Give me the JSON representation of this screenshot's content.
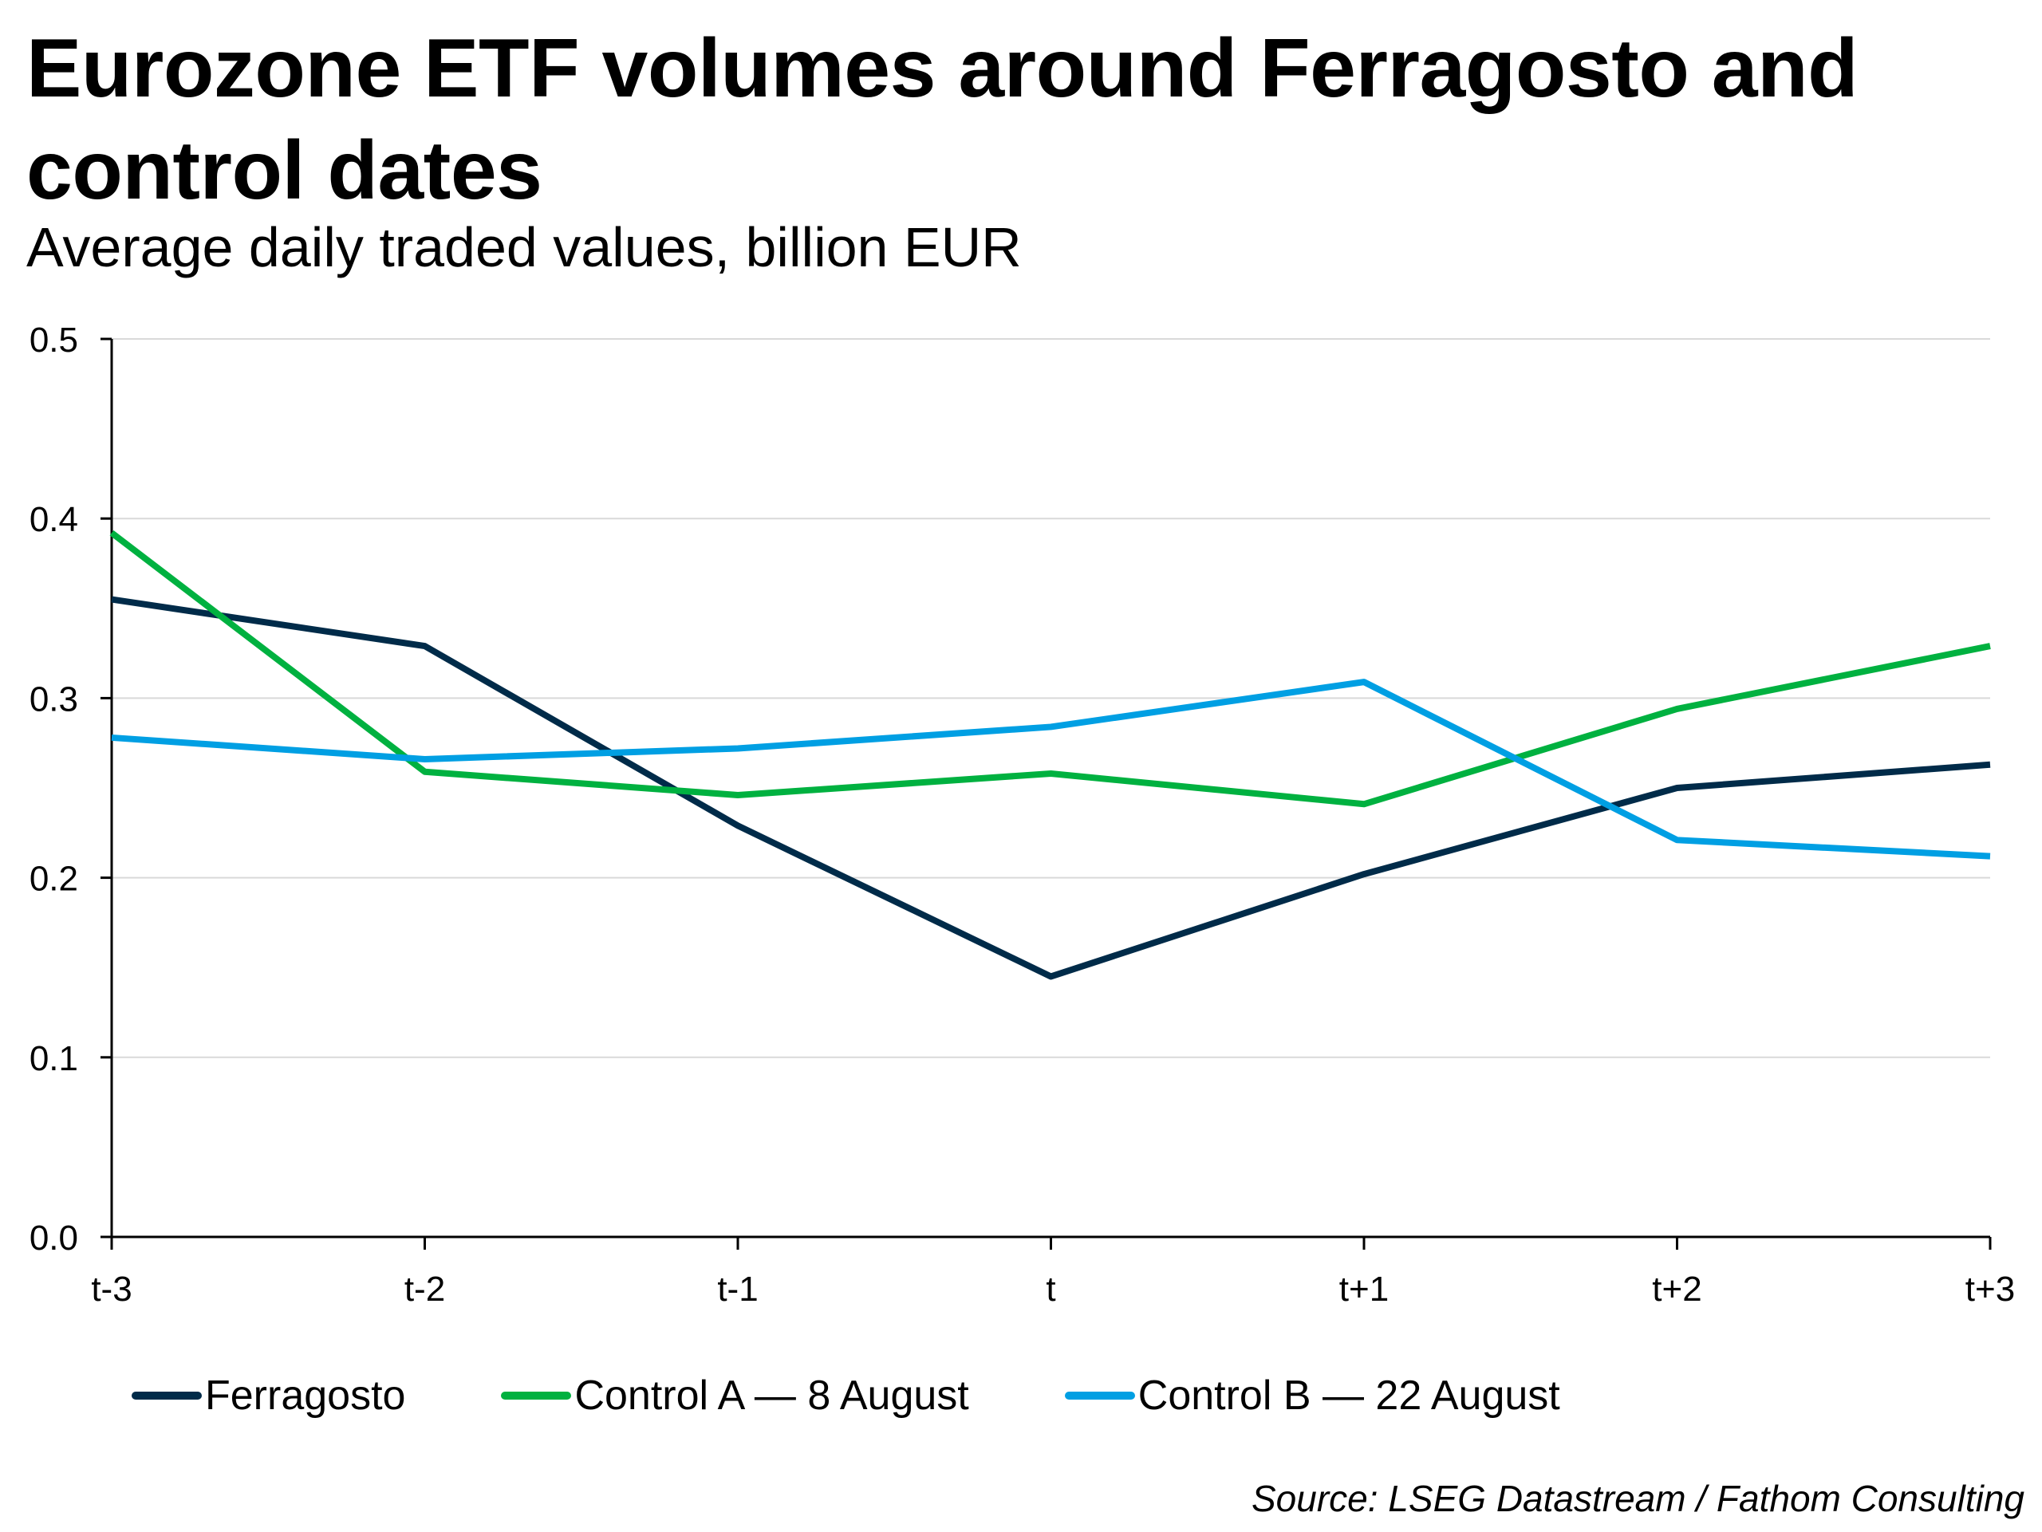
{
  "title": "Eurozone ETF volumes around Ferragosto and control dates",
  "subtitle": "Average daily traded values, billion EUR",
  "source": "Source: LSEG Datastream / Fathom Consulting",
  "chart_data": {
    "type": "line",
    "title": "Eurozone ETF volumes around Ferragosto and control dates",
    "subtitle": "Average daily traded values, billion EUR",
    "xlabel": "",
    "ylabel": "",
    "categories": [
      "t-3",
      "t-2",
      "t-1",
      "t",
      "t+1",
      "t+2",
      "t+3"
    ],
    "ylim": [
      0,
      0.5
    ],
    "yticks": [
      "0.0",
      "0.1",
      "0.2",
      "0.3",
      "0.4",
      "0.5"
    ],
    "grid": true,
    "legend_position": "bottom",
    "series": [
      {
        "name": "Ferragosto",
        "color": "#002b49",
        "values": [
          0.355,
          0.329,
          0.229,
          0.145,
          0.202,
          0.25,
          0.263
        ]
      },
      {
        "name": "Control A — 8 August",
        "color": "#00b140",
        "values": [
          0.392,
          0.259,
          0.246,
          0.258,
          0.241,
          0.294,
          0.329
        ]
      },
      {
        "name": "Control B — 22 August",
        "color": "#009fe3",
        "values": [
          0.278,
          0.266,
          0.272,
          0.284,
          0.309,
          0.221,
          0.212
        ]
      }
    ]
  }
}
